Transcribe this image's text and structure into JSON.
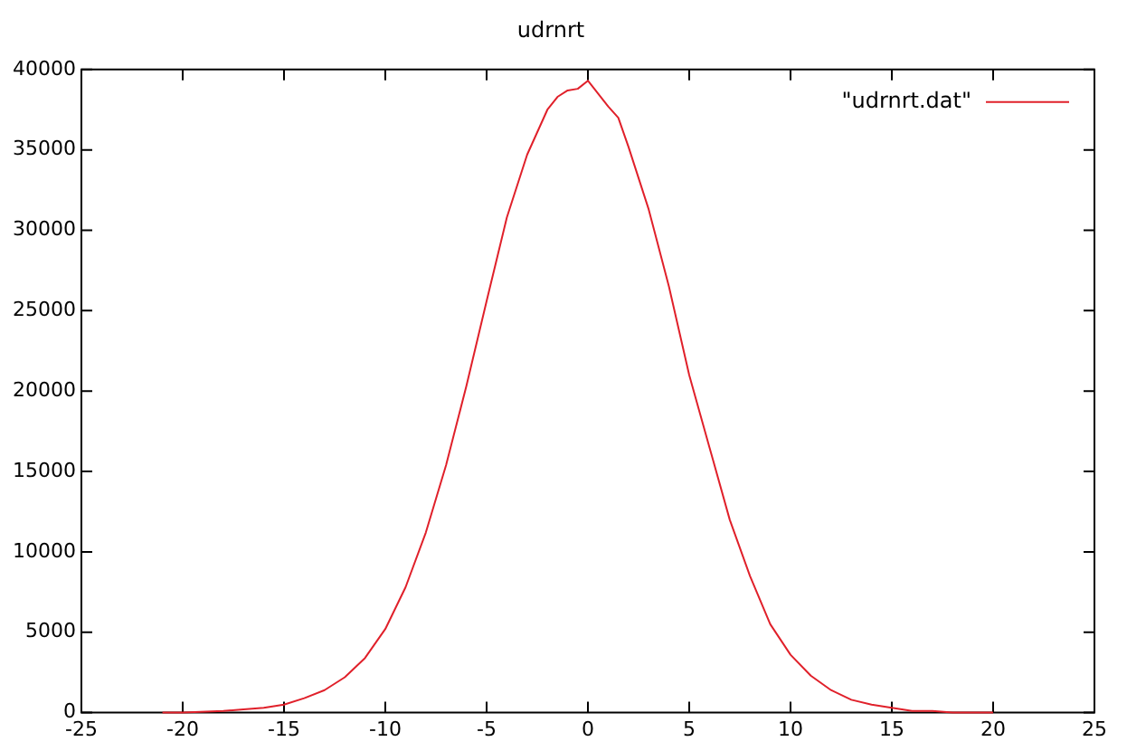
{
  "chart_data": {
    "type": "line",
    "title": "udrnrt",
    "x": [
      -21,
      -20,
      -18,
      -17,
      -16,
      -15,
      -14,
      -13,
      -12,
      -11,
      -10,
      -9,
      -8,
      -7,
      -6,
      -5,
      -4,
      -3,
      -2,
      -1.5,
      -1,
      -0.5,
      0,
      0.5,
      1,
      1.5,
      2,
      3,
      4,
      5,
      6,
      7,
      8,
      9,
      10,
      11,
      12,
      13,
      14,
      15,
      16,
      17,
      18,
      20
    ],
    "series": [
      {
        "name": "\"udrnrt.dat\"",
        "color": "#e0202a",
        "values": [
          0,
          0,
          100,
          200,
          300,
          500,
          900,
          1400,
          2200,
          3400,
          5200,
          7800,
          11200,
          15400,
          20300,
          25600,
          30800,
          34700,
          37500,
          38300,
          38700,
          38800,
          39300,
          38500,
          37700,
          37000,
          35200,
          31300,
          26500,
          21000,
          16500,
          12000,
          8500,
          5500,
          3600,
          2300,
          1400,
          800,
          500,
          300,
          100,
          100,
          0,
          0
        ]
      }
    ],
    "xlim": [
      -25,
      25
    ],
    "xticks": [
      -25,
      -20,
      -15,
      -10,
      -5,
      0,
      5,
      10,
      15,
      20,
      25
    ],
    "ylim": [
      0,
      40000
    ],
    "yticks": [
      0,
      5000,
      10000,
      15000,
      20000,
      25000,
      30000,
      35000,
      40000
    ],
    "grid": false,
    "legend": "top right",
    "marker": "none",
    "line_style": "solid"
  }
}
